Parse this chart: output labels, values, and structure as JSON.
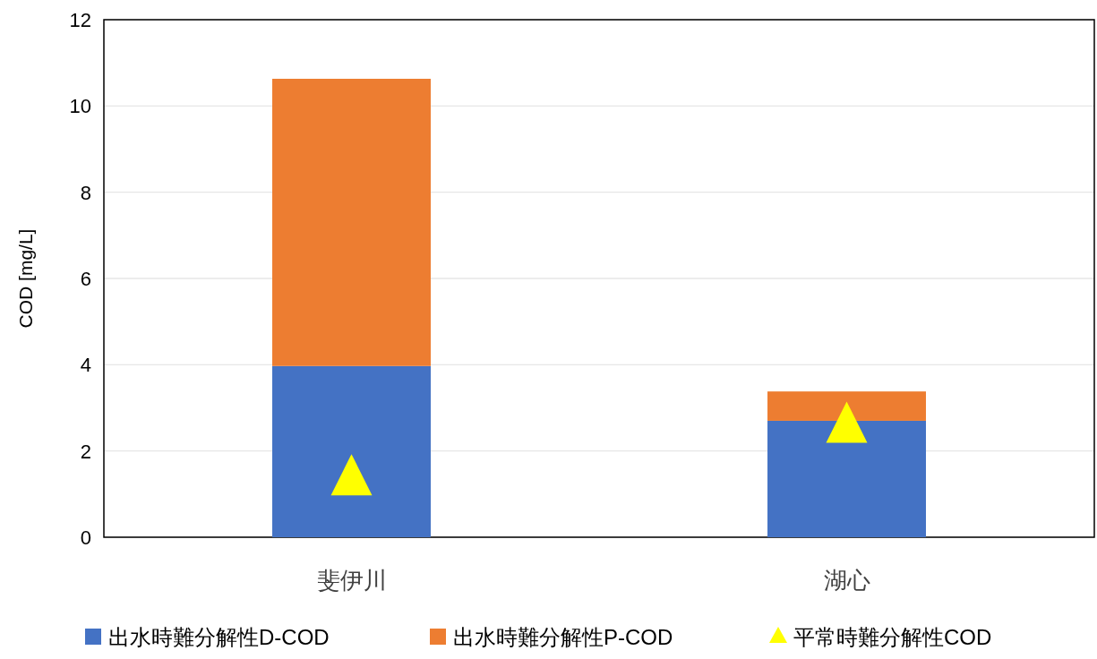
{
  "chart_data": {
    "type": "bar",
    "stacked": true,
    "categories": [
      "斐伊川",
      "湖心"
    ],
    "ylabel": "COD [mg/L]",
    "ylim": [
      0,
      12
    ],
    "yticks": [
      0,
      2,
      4,
      6,
      8,
      10,
      12
    ],
    "grid": "y",
    "legend": "bottom",
    "series": [
      {
        "name": "出水時難分解性D-COD",
        "color": "#4472c4",
        "values": [
          3.97,
          2.7
        ]
      },
      {
        "name": "出水時難分解性P-COD",
        "color": "#ed7d31",
        "values": [
          6.66,
          0.68
        ]
      },
      {
        "name": "平常時難分解性COD",
        "color": "#ffff00",
        "type": "scatter",
        "marker": "triangle",
        "x": [
          "斐伊川",
          "湖心"
        ],
        "values": [
          1.45,
          2.67
        ]
      }
    ]
  }
}
